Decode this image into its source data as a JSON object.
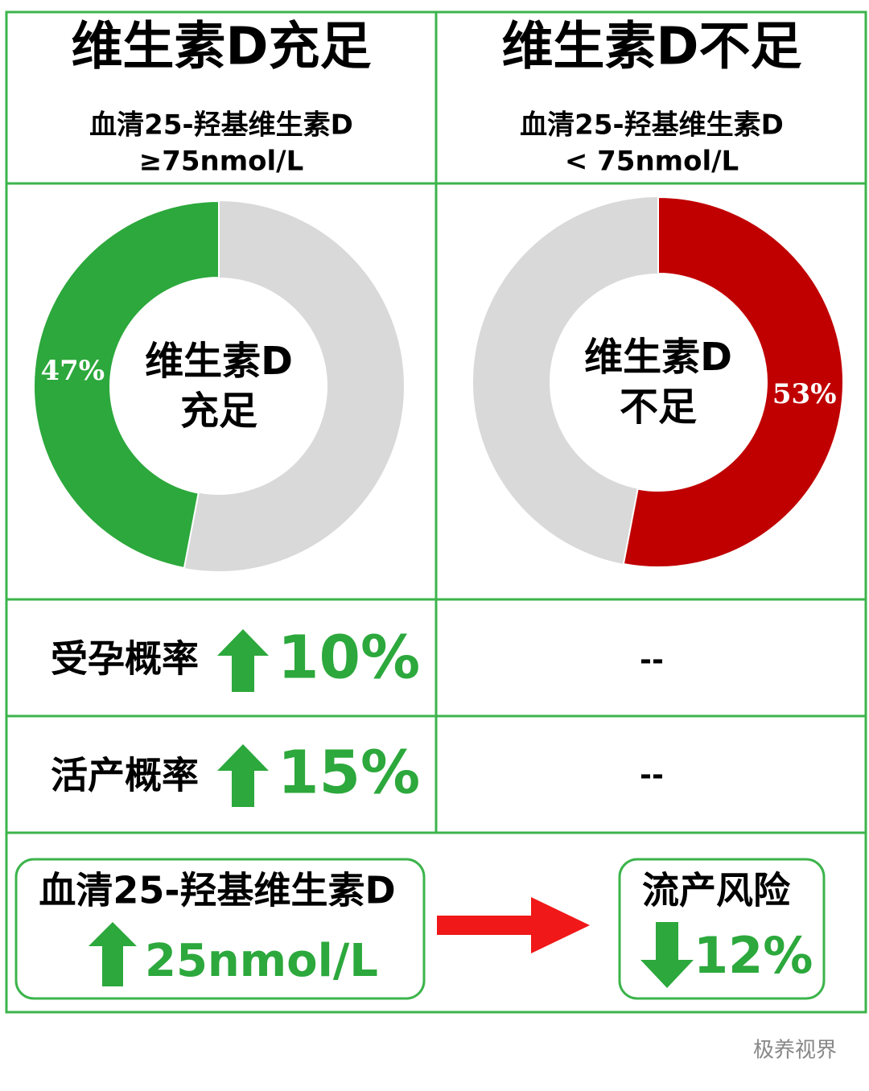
{
  "header": {
    "left": {
      "title": "维生素D充足",
      "subtitle": [
        "血清25-羟基维生素D",
        "≥75nmol/L"
      ]
    },
    "right": {
      "title": "维生素D不足",
      "subtitle": [
        "血清25-羟基维生素D",
        "< 75nmol/L"
      ]
    }
  },
  "chart_data": [
    {
      "type": "pie",
      "center_label": [
        "维生素D",
        "充足"
      ],
      "values": [
        47
      ],
      "value_labels": [
        "47%"
      ],
      "color": "#2ca83c",
      "direction": "counterclockwise"
    },
    {
      "type": "pie",
      "center_label": [
        "维生素D",
        "不足"
      ],
      "values": [
        53
      ],
      "value_labels": [
        "53%"
      ],
      "color": "#c00000",
      "direction": "clockwise"
    }
  ],
  "rows": [
    {
      "label": "受孕概率",
      "value": "10%",
      "other": "--"
    },
    {
      "label": "活产概率",
      "value": "15%",
      "other": "--"
    }
  ],
  "bottom": {
    "left": [
      "血清25-羟基维生素D",
      "25nmol/L"
    ],
    "right": [
      "流产风险",
      "12%"
    ]
  },
  "watermark": "极养视界"
}
